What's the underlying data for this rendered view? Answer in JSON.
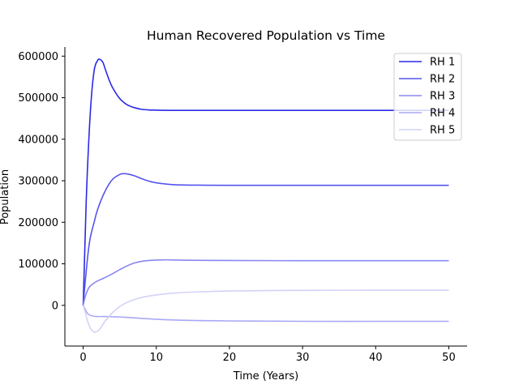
{
  "chart_data": {
    "type": "line",
    "title": "Human Recovered Population vs Time",
    "xlabel": "Time (Years)",
    "ylabel": "Population",
    "xlim": [
      -2.5,
      52.5
    ],
    "ylim": [
      -98000,
      622000
    ],
    "xticks": [
      0,
      10,
      20,
      30,
      40,
      50
    ],
    "yticks": [
      0,
      100000,
      200000,
      300000,
      400000,
      500000,
      600000
    ],
    "grid": false,
    "legend_position": "top-right",
    "series": [
      {
        "name": "RH 1",
        "color": "#2a2ae6",
        "x": [
          0,
          0.2,
          0.5,
          1,
          1.5,
          2,
          2.3,
          2.7,
          3,
          3.5,
          4,
          5,
          6,
          7,
          8,
          9,
          10,
          12,
          15,
          20,
          30,
          40,
          50
        ],
        "y": [
          0,
          120000,
          290000,
          470000,
          565000,
          590000,
          592000,
          585000,
          570000,
          545000,
          525000,
          498000,
          483000,
          476000,
          472000,
          470500,
          470000,
          469500,
          469500,
          469500,
          469500,
          469500,
          469500
        ]
      },
      {
        "name": "RH 2",
        "color": "#5555ee",
        "x": [
          0,
          0.3,
          0.7,
          1,
          1.5,
          2,
          3,
          4,
          5,
          5.5,
          6,
          7,
          8,
          9,
          10,
          12,
          15,
          20,
          30,
          40,
          50
        ],
        "y": [
          0,
          60000,
          130000,
          165000,
          200000,
          232000,
          275000,
          303000,
          315000,
          317000,
          316500,
          312000,
          305000,
          299000,
          295000,
          291000,
          289500,
          289000,
          289000,
          289000,
          289000
        ]
      },
      {
        "name": "RH 3",
        "color": "#8888f2",
        "x": [
          0,
          0.3,
          0.7,
          1,
          1.5,
          2,
          3,
          4,
          5,
          6,
          7,
          8,
          9,
          10,
          11,
          12,
          13,
          15,
          20,
          30,
          40,
          50
        ],
        "y": [
          0,
          22000,
          40000,
          47000,
          54000,
          59000,
          67000,
          76000,
          86000,
          95000,
          102000,
          106000,
          108000,
          109000,
          109500,
          109500,
          109000,
          108500,
          108000,
          107500,
          107500,
          107500
        ]
      },
      {
        "name": "RH 4",
        "color": "#a8a8f5",
        "x": [
          0,
          0.3,
          0.6,
          1,
          1.5,
          2,
          3,
          4,
          5,
          6,
          7,
          8,
          10,
          12,
          15,
          20,
          25,
          30,
          40,
          50
        ],
        "y": [
          0,
          -10000,
          -20000,
          -24000,
          -26500,
          -27000,
          -27000,
          -27500,
          -28000,
          -29000,
          -30000,
          -31500,
          -33500,
          -35000,
          -36500,
          -37500,
          -38000,
          -38500,
          -38500,
          -38500
        ]
      },
      {
        "name": "RH 5",
        "color": "#d2d2f8",
        "x": [
          0,
          0.3,
          0.6,
          1,
          1.5,
          2,
          2.5,
          3,
          4,
          5,
          6,
          7,
          8,
          10,
          12,
          15,
          20,
          25,
          30,
          40,
          50
        ],
        "y": [
          0,
          -18000,
          -38000,
          -55000,
          -64000,
          -62000,
          -52000,
          -38000,
          -18000,
          -3000,
          7000,
          14000,
          19000,
          25000,
          29000,
          32000,
          34500,
          35500,
          36000,
          36500,
          36500
        ]
      }
    ]
  }
}
